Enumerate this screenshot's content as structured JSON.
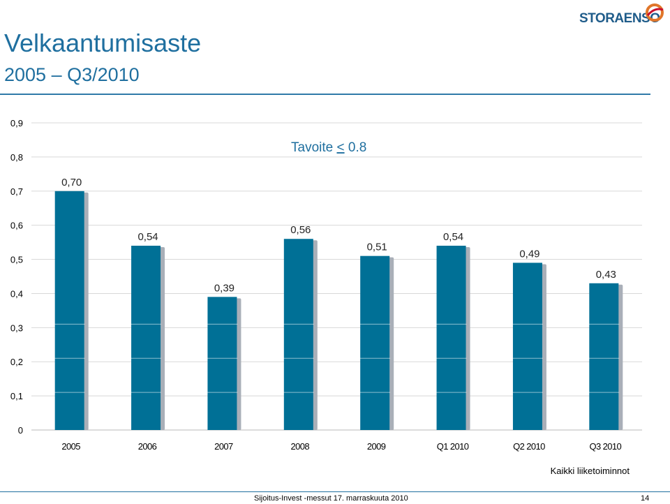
{
  "header": {
    "title": "Velkaantumisaste",
    "subtitle": "2005 – Q3/2010",
    "logo_text": "STORAENSO"
  },
  "footer": {
    "event": "Sijoitus-Invest -messut  17. marraskuuta 2010",
    "page_number": "14"
  },
  "colors": {
    "bar": "#007096",
    "bar_shadow": "#a9afb8",
    "title": "#1f6f9f",
    "target_text": "#1f6f9f"
  },
  "chart_data": {
    "type": "bar",
    "title": "",
    "xlabel": "",
    "ylabel": "",
    "categories": [
      "2005",
      "2006",
      "2007",
      "2008",
      "2009",
      "Q1 2010",
      "Q2 2010",
      "Q3 2010"
    ],
    "values": [
      0.7,
      0.54,
      0.39,
      0.56,
      0.51,
      0.54,
      0.49,
      0.43
    ],
    "data_labels": [
      "0,70",
      "0,54",
      "0,39",
      "0,56",
      "0,51",
      "0,54",
      "0,49",
      "0,43"
    ],
    "yticks": [
      "0",
      "0,1",
      "0,2",
      "0,3",
      "0,4",
      "0,5",
      "0,6",
      "0,7",
      "0,8",
      "0,9"
    ],
    "ylim": [
      0,
      0.9
    ],
    "grid": true,
    "annotation": {
      "prefix": "Tavoite ",
      "operator": "<",
      "value": " 0.8"
    },
    "note": "Kaikki liiketoiminnot"
  }
}
